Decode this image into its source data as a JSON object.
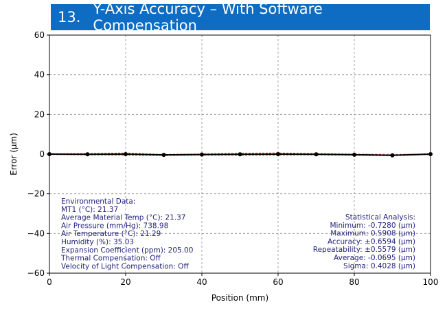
{
  "title_bar": {
    "number": "13.",
    "text": "Y-Axis Accuracy – With Software Compensation",
    "color": "#0e6cc2"
  },
  "chart_data": {
    "type": "line",
    "xlabel": "Position (mm)",
    "ylabel": "Error (µm)",
    "xlim": [
      0,
      100
    ],
    "ylim": [
      -60,
      60
    ],
    "x_ticks": [
      "0",
      "20",
      "40",
      "60",
      "80",
      "100"
    ],
    "y_ticks": [
      "60",
      "40",
      "20",
      "0",
      "−20",
      "−40",
      "−60"
    ],
    "x_tick_values": [
      0,
      20,
      40,
      60,
      80,
      100
    ],
    "y_tick_values": [
      60,
      40,
      20,
      0,
      -20,
      -40,
      -60
    ],
    "grid": true,
    "series": [
      {
        "color": "#000000",
        "style": "solid",
        "marker": "circle",
        "x": [
          0,
          10,
          20,
          30,
          40,
          50,
          60,
          70,
          80,
          90,
          100
        ],
        "y": [
          0.0,
          -0.1,
          0.0,
          -0.4,
          -0.2,
          -0.1,
          0.0,
          -0.1,
          -0.3,
          -0.6,
          0.0
        ]
      },
      {
        "color": "#d62728",
        "style": "dashed",
        "marker": "none",
        "x": [
          0,
          10,
          20,
          30,
          40,
          50,
          60,
          70,
          80,
          90,
          100
        ],
        "y": [
          0.2,
          0.3,
          0.6,
          -0.2,
          0.1,
          0.5,
          0.6,
          0.3,
          0.0,
          -0.3,
          0.2
        ]
      },
      {
        "color": "#d62728",
        "style": "dashed",
        "marker": "none",
        "x": [
          0,
          10,
          20,
          30,
          40,
          50,
          60,
          70,
          80,
          90,
          100
        ],
        "y": [
          -0.2,
          -0.4,
          -0.5,
          -0.7,
          -0.5,
          -0.6,
          -0.5,
          -0.4,
          -0.6,
          -0.8,
          -0.2
        ]
      }
    ],
    "annotations": {
      "environmental": [
        "Environmental Data:",
        "MT1 (°C): 21.37",
        "Average Material Temp (°C): 21.37",
        "Air Pressure (mm/Hg): 738.98",
        "Air Temperature (°C): 21.29",
        "Humidity (%): 35.03",
        "Expansion Coefficient (ppm): 205.00",
        "Thermal Compensation: Off",
        "Velocity of Light Compensation: Off"
      ],
      "statistics": [
        "Statistical Analysis:",
        "Minimum: -0.7280 (µm)",
        "Maximum: 0.5908 (µm)",
        "Accuracy: ±0.6594 (µm)",
        "Repeatability: ±0.5579 (µm)",
        "Average: -0.0695 (µm)",
        "Sigma: 0.4028 (µm)"
      ]
    }
  }
}
